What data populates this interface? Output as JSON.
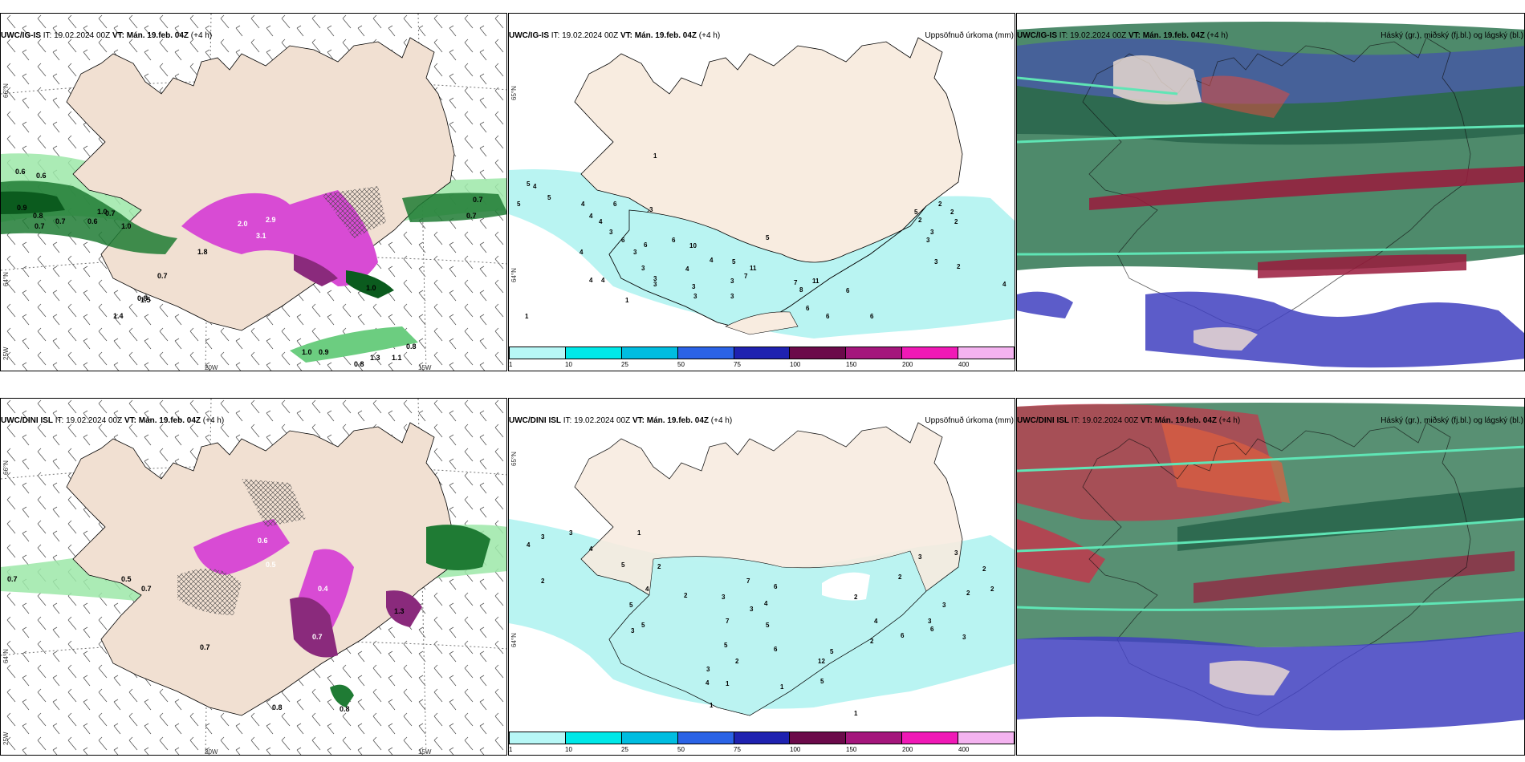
{
  "panels": {
    "top_left": {
      "model": "UWC/IG-IS",
      "it_label": "IT:",
      "it": "19.02.2024 00Z",
      "vt_label": "VT:",
      "vt": "Mán. 19.feb. 04Z",
      "lead": "(+4 h)",
      "right": ""
    },
    "top_mid": {
      "model": "UWC/IG-IS",
      "it_label": "IT:",
      "it": "19.02.2024 00Z",
      "vt_label": "VT:",
      "vt": "Mán. 19.feb. 04Z",
      "lead": "(+4 h)",
      "right": "Uppsöfnuð úrkoma (mm)"
    },
    "top_right": {
      "model": "UWC/IG-IS",
      "it_label": "IT:",
      "it": "19.02.2024 00Z",
      "vt_label": "VT:",
      "vt": "Mán. 19.feb. 04Z",
      "lead": "(+4 h)",
      "right": "Háský (gr.), miðský (fj.bl.) og lágský (bl.)"
    },
    "bot_left": {
      "model": "UWC/DINI ISL",
      "it_label": "IT:",
      "it": "19.02.2024 00Z",
      "vt_label": "VT:",
      "vt": "Mán. 19.feb. 04Z",
      "lead": "(+4 h)",
      "right": ""
    },
    "bot_mid": {
      "model": "UWC/DINI ISL",
      "it_label": "IT:",
      "it": "19.02.2024 00Z",
      "vt_label": "VT:",
      "vt": "Mán. 19.feb. 04Z",
      "lead": "(+4 h)",
      "right": "Uppsöfnuð úrkoma (mm)"
    },
    "bot_right": {
      "model": "UWC/DINI ISL",
      "it_label": "IT:",
      "it": "19.02.2024 00Z",
      "vt_label": "VT:",
      "vt": "Mán. 19.feb. 04Z",
      "lead": "(+4 h)",
      "right": "Háský (gr.), miðský (fj.bl.) og lágský (bl.)"
    }
  },
  "axes": {
    "lat_66": "66°N",
    "lat_64": "64°N",
    "lat_65": "65°N",
    "lon_20": "20W",
    "lon_15": "15W",
    "lon_25": "25W"
  },
  "colorbar": {
    "labels": [
      "1",
      "10",
      "25",
      "50",
      "75",
      "100",
      "150",
      "200",
      "400"
    ],
    "colors": [
      "#b7f7f6",
      "#00e8e8",
      "#00bde0",
      "#2b63e6",
      "#1f22b0",
      "#6b0a4a",
      "#a4167c",
      "#f019b6",
      "#f4b3f0"
    ]
  },
  "colors": {
    "land": "#f1e0d2",
    "precip_light": "#b9f4f2",
    "snow_light": "#8fe39b",
    "snow_mid": "#2f9c46",
    "snow_dark": "#0b5b1e",
    "sleet": "#d84bd4",
    "sleet_dark": "#8a2a7c",
    "cloud_high": "#3b7d5b",
    "cloud_mid": "#c0394c",
    "cloud_low": "#3f3fc0"
  },
  "precip_labels_top": [
    "5",
    "5",
    "4",
    "4",
    "5",
    "6",
    "4",
    "4",
    "4",
    "3",
    "6",
    "3",
    "3",
    "4",
    "4",
    "6",
    "10",
    "6",
    "3",
    "4",
    "3",
    "3",
    "1",
    "4",
    "7",
    "5",
    "8",
    "11",
    "11",
    "7",
    "6",
    "6",
    "3",
    "3",
    "3",
    "3",
    "2",
    "2",
    "4",
    "1",
    "5",
    "1",
    "2",
    "2",
    "3",
    "3",
    "6",
    "5",
    "6",
    "3",
    "2"
  ],
  "precip_labels_bot": [
    "4",
    "3",
    "3",
    "2",
    "4",
    "5",
    "1",
    "5",
    "2",
    "4",
    "5",
    "3",
    "2",
    "7",
    "3",
    "6",
    "4",
    "3",
    "7",
    "5",
    "6",
    "12",
    "5",
    "5",
    "2",
    "3",
    "4",
    "3",
    "3",
    "2",
    "1",
    "5",
    "2",
    "2",
    "3",
    "3",
    "1",
    "3",
    "2",
    "6",
    "6",
    "4",
    "2",
    "2",
    "1",
    "1"
  ],
  "snow_labels_top": [
    "0.6",
    "0.6",
    "0.9",
    "0.8",
    "0.7",
    "1.0",
    "0.7",
    "0.6",
    "1.0",
    "0.7",
    "0.7",
    "2.0",
    "3.1",
    "2.9",
    "1.8",
    "0.7",
    "0.8",
    "1.5",
    "1.4",
    "1.0",
    "0.9",
    "0.8",
    "1.3",
    "1.1",
    "0.8",
    "0.7",
    "1.0"
  ],
  "snow_labels_bot": [
    "0.7",
    "0.5",
    "0.7",
    "0.6",
    "1.3",
    "0.7",
    "0.8",
    "0.5",
    "0.4",
    "0.7",
    "0.8"
  ]
}
